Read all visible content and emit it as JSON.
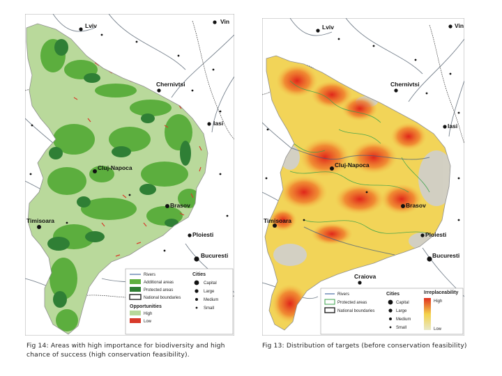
{
  "left_map": {
    "cities": [
      {
        "name": "Lviv"
      },
      {
        "name": "Vin"
      },
      {
        "name": "Chernivtsi"
      },
      {
        "name": "Iasi"
      },
      {
        "name": "Cluj-Napoca"
      },
      {
        "name": "Brasov"
      },
      {
        "name": "Timisoara"
      },
      {
        "name": "Ploiesti"
      },
      {
        "name": "Bucuresti"
      }
    ],
    "legend": {
      "rivers": "Rivers",
      "additional": "Additional areas",
      "protected": "Protected areas",
      "national": "National boundaries",
      "opportunities": "Opportunities",
      "high": "High",
      "low": "Low",
      "cities_title": "Cities",
      "capital": "Capital",
      "large": "Large",
      "medium": "Medium",
      "small": "Small"
    },
    "caption": "Fig 14: Areas with high importance for biodiversity and high chance of success (high conservation feasibility).",
    "colors": {
      "high": "#b7d89a",
      "additional": "#5faf3f",
      "protected": "#2e7d32",
      "low": "#d83a2a"
    }
  },
  "right_map": {
    "cities": [
      {
        "name": "Lviv"
      },
      {
        "name": "Vin"
      },
      {
        "name": "Chernivtsi"
      },
      {
        "name": "Iasi"
      },
      {
        "name": "Cluj-Napoca"
      },
      {
        "name": "Brasov"
      },
      {
        "name": "Timisoara"
      },
      {
        "name": "Ploiesti"
      },
      {
        "name": "Bucuresti"
      },
      {
        "name": "Craiova"
      }
    ],
    "legend": {
      "rivers": "Rivers",
      "protected": "Protected areas",
      "national": "National boundaries",
      "cities_title": "Cities",
      "capital": "Capital",
      "large": "Large",
      "medium": "Medium",
      "small": "Small",
      "irreplaceability": "Irreplaceability",
      "high": "High",
      "low": "Low"
    },
    "caption": "Fig 13: Distribution of targets (before conservation feasibility)",
    "colors": {
      "high": "#e8321e",
      "mid": "#f3d24a",
      "low": "#cfcfcf"
    }
  }
}
